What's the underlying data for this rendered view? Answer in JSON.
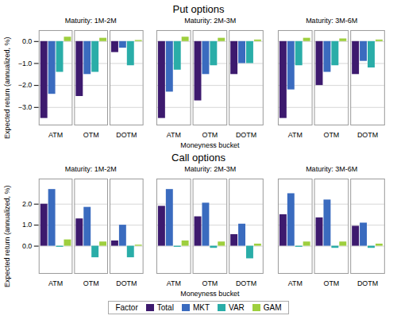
{
  "chart_data": [
    {
      "type": "bar",
      "title": "Put options",
      "ylabel": "Expected return (annualized, %)",
      "categories": [
        "ATM",
        "OTM",
        "DOTM"
      ],
      "ylim": [
        -3.8,
        0.5
      ],
      "yticks": [
        0,
        -1,
        -2,
        -3
      ],
      "grid": true,
      "panels": [
        {
          "subtitle": "Maturity: 1M-2M",
          "series": [
            {
              "name": "Total",
              "color": "#3d1a6e",
              "values": [
                -3.5,
                -2.5,
                -0.5
              ]
            },
            {
              "name": "MKT",
              "color": "#3a6bbf",
              "values": [
                -2.4,
                -1.5,
                -0.3
              ]
            },
            {
              "name": "VAR",
              "color": "#2aada8",
              "values": [
                -1.4,
                -1.4,
                -1.1
              ]
            },
            {
              "name": "GAM",
              "color": "#9ecf3e",
              "values": [
                0.2,
                0.15,
                0.05
              ]
            }
          ]
        },
        {
          "subtitle": "Maturity: 2M-3M",
          "xlabel": "Moneyness bucket",
          "tick_labels": "x",
          "series": [
            {
              "name": "Total",
              "color": "#3d1a6e",
              "values": [
                -3.5,
                -2.7,
                -1.5
              ]
            },
            {
              "name": "MKT",
              "color": "#3a6bbf",
              "values": [
                -2.3,
                -1.5,
                -1.0
              ]
            },
            {
              "name": "VAR",
              "color": "#2aada8",
              "values": [
                -1.3,
                -1.1,
                -1.0
              ]
            },
            {
              "name": "GAM",
              "color": "#9ecf3e",
              "values": [
                0.2,
                0.15,
                0.07
              ]
            }
          ]
        },
        {
          "subtitle": "Maturity: 3M-6M",
          "tick_labels": "x",
          "series": [
            {
              "name": "Total",
              "color": "#3d1a6e",
              "values": [
                -3.5,
                -2.0,
                -1.5
              ]
            },
            {
              "name": "MKT",
              "color": "#3a6bbf",
              "values": [
                -2.2,
                -1.4,
                -0.9
              ]
            },
            {
              "name": "VAR",
              "color": "#2aada8",
              "values": [
                -1.1,
                -1.1,
                -1.2
              ]
            },
            {
              "name": "GAM",
              "color": "#9ecf3e",
              "values": [
                0.15,
                0.12,
                0.07
              ]
            }
          ]
        }
      ]
    },
    {
      "type": "bar",
      "title": "Call options",
      "ylabel": "Expected return (annualized, %)",
      "categories": [
        "ATM",
        "OTM",
        "DOTM"
      ],
      "ylim": [
        -1.3,
        3.2
      ],
      "yticks": [
        0,
        1,
        2
      ],
      "grid": true,
      "legend": "bottom",
      "legend_title": "Factor",
      "panels": [
        {
          "subtitle": "Maturity: 1M-2M",
          "series": [
            {
              "name": "Total",
              "color": "#3d1a6e",
              "values": [
                2.0,
                1.3,
                0.25
              ]
            },
            {
              "name": "MKT",
              "color": "#3a6bbf",
              "values": [
                2.7,
                1.85,
                1.0
              ]
            },
            {
              "name": "VAR",
              "color": "#2aada8",
              "values": [
                -0.05,
                -0.55,
                -0.55
              ]
            },
            {
              "name": "GAM",
              "color": "#9ecf3e",
              "values": [
                0.3,
                0.2,
                0.05
              ]
            }
          ]
        },
        {
          "subtitle": "Maturity: 2M-3M",
          "xlabel": "Moneyness bucket",
          "tick_labels": "x",
          "series": [
            {
              "name": "Total",
              "color": "#3d1a6e",
              "values": [
                1.9,
                1.4,
                0.55
              ]
            },
            {
              "name": "MKT",
              "color": "#3a6bbf",
              "values": [
                2.7,
                2.05,
                1.05
              ]
            },
            {
              "name": "VAR",
              "color": "#2aada8",
              "values": [
                -0.05,
                -0.1,
                -0.6
              ]
            },
            {
              "name": "GAM",
              "color": "#9ecf3e",
              "values": [
                0.25,
                0.2,
                0.1
              ]
            }
          ]
        },
        {
          "subtitle": "Maturity: 3M-6M",
          "tick_labels": "x",
          "series": [
            {
              "name": "Total",
              "color": "#3d1a6e",
              "values": [
                1.5,
                1.35,
                0.95
              ]
            },
            {
              "name": "MKT",
              "color": "#3a6bbf",
              "values": [
                2.5,
                2.2,
                1.1
              ]
            },
            {
              "name": "VAR",
              "color": "#2aada8",
              "values": [
                -0.05,
                -0.1,
                -0.1
              ]
            },
            {
              "name": "GAM",
              "color": "#9ecf3e",
              "values": [
                0.2,
                0.2,
                0.1
              ]
            }
          ]
        }
      ]
    }
  ]
}
